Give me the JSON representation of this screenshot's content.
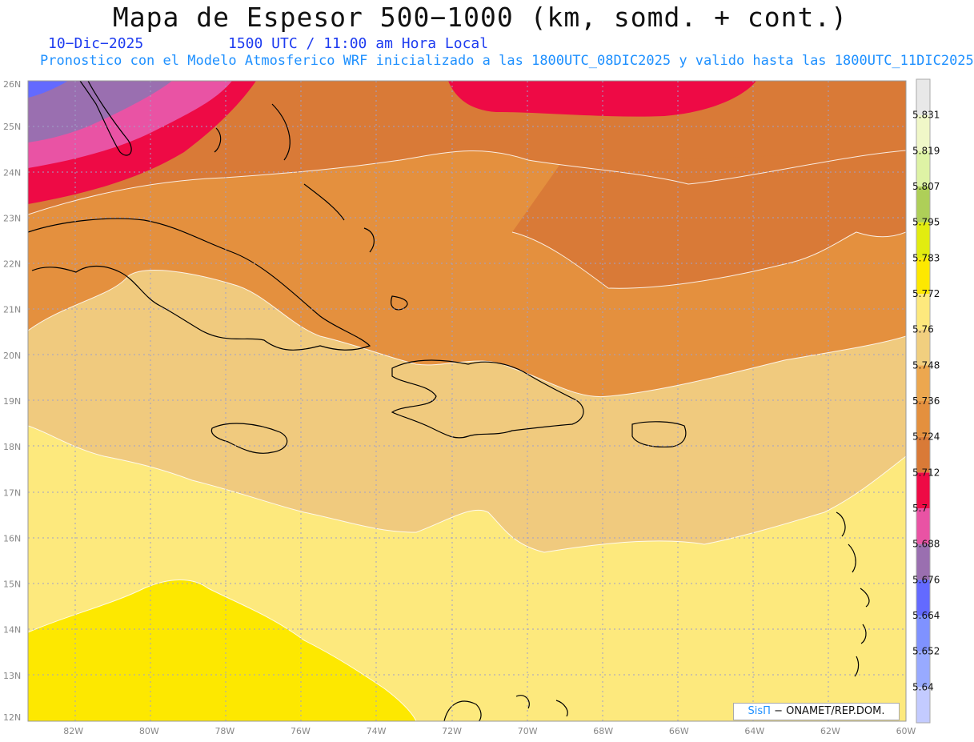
{
  "title": "Mapa de Espesor 500−1000 (km, somd. + cont.)",
  "subtitle": {
    "date": "10−Dic−2025",
    "time": "1500 UTC / 11:00 am Hora Local",
    "model": "Pronostico con el Modelo Atmosferico WRF inicializado a las 1800UTC_08DIC2025 y valido hasta las  1800UTC_11DIC2025"
  },
  "credit": {
    "brand": "SisΠ",
    "text": " − ONAMET/REP.DOM."
  },
  "axes": {
    "lat_labels": [
      "12N",
      "13N",
      "14N",
      "15N",
      "16N",
      "17N",
      "18N",
      "19N",
      "20N",
      "21N",
      "22N",
      "23N",
      "24N",
      "25N",
      "26N"
    ],
    "lon_labels": [
      "82W",
      "80W",
      "78W",
      "76W",
      "74W",
      "72W",
      "70W",
      "68W",
      "66W",
      "64W",
      "62W",
      "60W"
    ],
    "lat_range": [
      12,
      26
    ],
    "lon_range": [
      -83.2,
      -60
    ]
  },
  "colorbar": {
    "levels": [
      "5.64",
      "5.652",
      "5.664",
      "5.676",
      "5.688",
      "5.7",
      "5.712",
      "5.724",
      "5.736",
      "5.748",
      "5.76",
      "5.772",
      "5.783",
      "5.795",
      "5.807",
      "5.819",
      "5.831"
    ],
    "colors": [
      "#c3cbff",
      "#98aaff",
      "#7f92ff",
      "#636aff",
      "#9a6fb0",
      "#e953a4",
      "#ee0a45",
      "#d97a37",
      "#e4903e",
      "#eca74f",
      "#f1cf7f",
      "#fde97d",
      "#fde800",
      "#e2ec10",
      "#aecf58",
      "#def3a5",
      "#f0f7c8",
      "#e8e8e8"
    ]
  },
  "legend_colors": {
    "purple": "#9a6fb0",
    "pink": "#e953a4",
    "red": "#ee0a45",
    "orange_dark": "#d97a37",
    "orange": "#e4903e",
    "tan": "#f0ca7e",
    "light_yellow": "#fde97d",
    "yellow": "#fde800"
  }
}
